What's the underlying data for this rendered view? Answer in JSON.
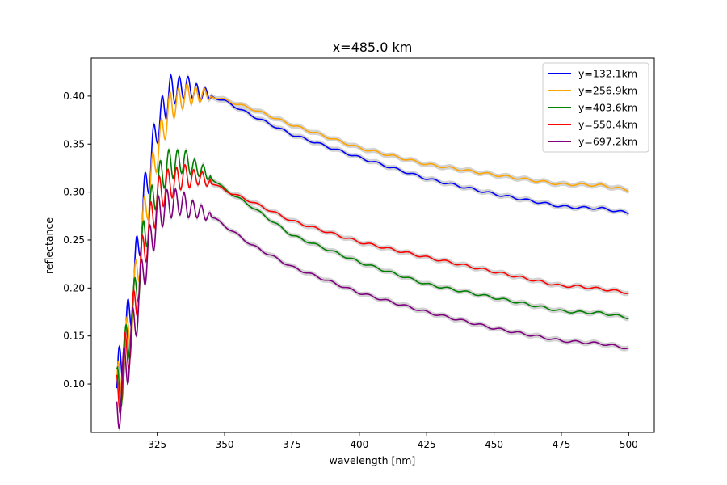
{
  "chart_data": {
    "type": "line",
    "title": "x=485.0 km",
    "xlabel": "wavelength [nm]",
    "ylabel": "reflectance",
    "xlim": [
      300.5,
      509.5
    ],
    "ylim": [
      0.0495,
      0.4395
    ],
    "xticks": [
      325,
      350,
      375,
      400,
      425,
      450,
      475,
      500
    ],
    "xtick_labels": [
      "325",
      "350",
      "375",
      "400",
      "425",
      "450",
      "475",
      "500"
    ],
    "yticks": [
      0.1,
      0.15,
      0.2,
      0.25,
      0.3,
      0.35,
      0.4
    ],
    "ytick_labels": [
      "0.10",
      "0.15",
      "0.20",
      "0.25",
      "0.30",
      "0.35",
      "0.40"
    ],
    "grid": false,
    "legend_position": "top-right",
    "uncertainty_band_color": "#d3d3d3",
    "series": [
      {
        "name": "y=132.1km",
        "color": "#0000ff",
        "x": [
          310,
          315,
          320,
          325,
          330,
          335,
          340,
          345,
          350,
          360,
          375,
          400,
          425,
          450,
          475,
          480,
          490,
          500
        ],
        "values": [
          0.095,
          0.175,
          0.29,
          0.37,
          0.405,
          0.41,
          0.405,
          0.4,
          0.395,
          0.38,
          0.36,
          0.336,
          0.314,
          0.298,
          0.285,
          0.284,
          0.283,
          0.278
        ]
      },
      {
        "name": "y=256.9km",
        "color": "#ffa500",
        "x": [
          310,
          315,
          320,
          325,
          330,
          335,
          340,
          345,
          350,
          360,
          375,
          400,
          425,
          450,
          475,
          480,
          490,
          500
        ],
        "values": [
          0.085,
          0.16,
          0.27,
          0.345,
          0.39,
          0.4,
          0.402,
          0.4,
          0.396,
          0.387,
          0.37,
          0.346,
          0.329,
          0.318,
          0.308,
          0.308,
          0.307,
          0.302
        ]
      },
      {
        "name": "y=403.6km",
        "color": "#008000",
        "x": [
          310,
          315,
          320,
          325,
          330,
          335,
          340,
          345,
          350,
          360,
          375,
          400,
          425,
          450,
          475,
          480,
          490,
          500
        ],
        "values": [
          0.085,
          0.155,
          0.25,
          0.31,
          0.33,
          0.332,
          0.325,
          0.315,
          0.303,
          0.285,
          0.255,
          0.227,
          0.204,
          0.19,
          0.176,
          0.175,
          0.174,
          0.169
        ]
      },
      {
        "name": "y=550.4km",
        "color": "#ff0000",
        "x": [
          310,
          315,
          320,
          325,
          330,
          335,
          340,
          345,
          350,
          360,
          375,
          400,
          425,
          450,
          475,
          480,
          490,
          500
        ],
        "values": [
          0.083,
          0.15,
          0.24,
          0.295,
          0.31,
          0.316,
          0.315,
          0.31,
          0.302,
          0.29,
          0.27,
          0.248,
          0.232,
          0.217,
          0.202,
          0.202,
          0.199,
          0.195
        ]
      },
      {
        "name": "y=697.2km",
        "color": "#800080",
        "x": [
          310,
          315,
          320,
          325,
          330,
          335,
          340,
          345,
          350,
          360,
          375,
          400,
          425,
          450,
          475,
          480,
          490,
          500
        ],
        "values": [
          0.072,
          0.14,
          0.22,
          0.275,
          0.29,
          0.287,
          0.28,
          0.275,
          0.265,
          0.245,
          0.222,
          0.195,
          0.175,
          0.158,
          0.145,
          0.144,
          0.142,
          0.137
        ]
      }
    ]
  }
}
